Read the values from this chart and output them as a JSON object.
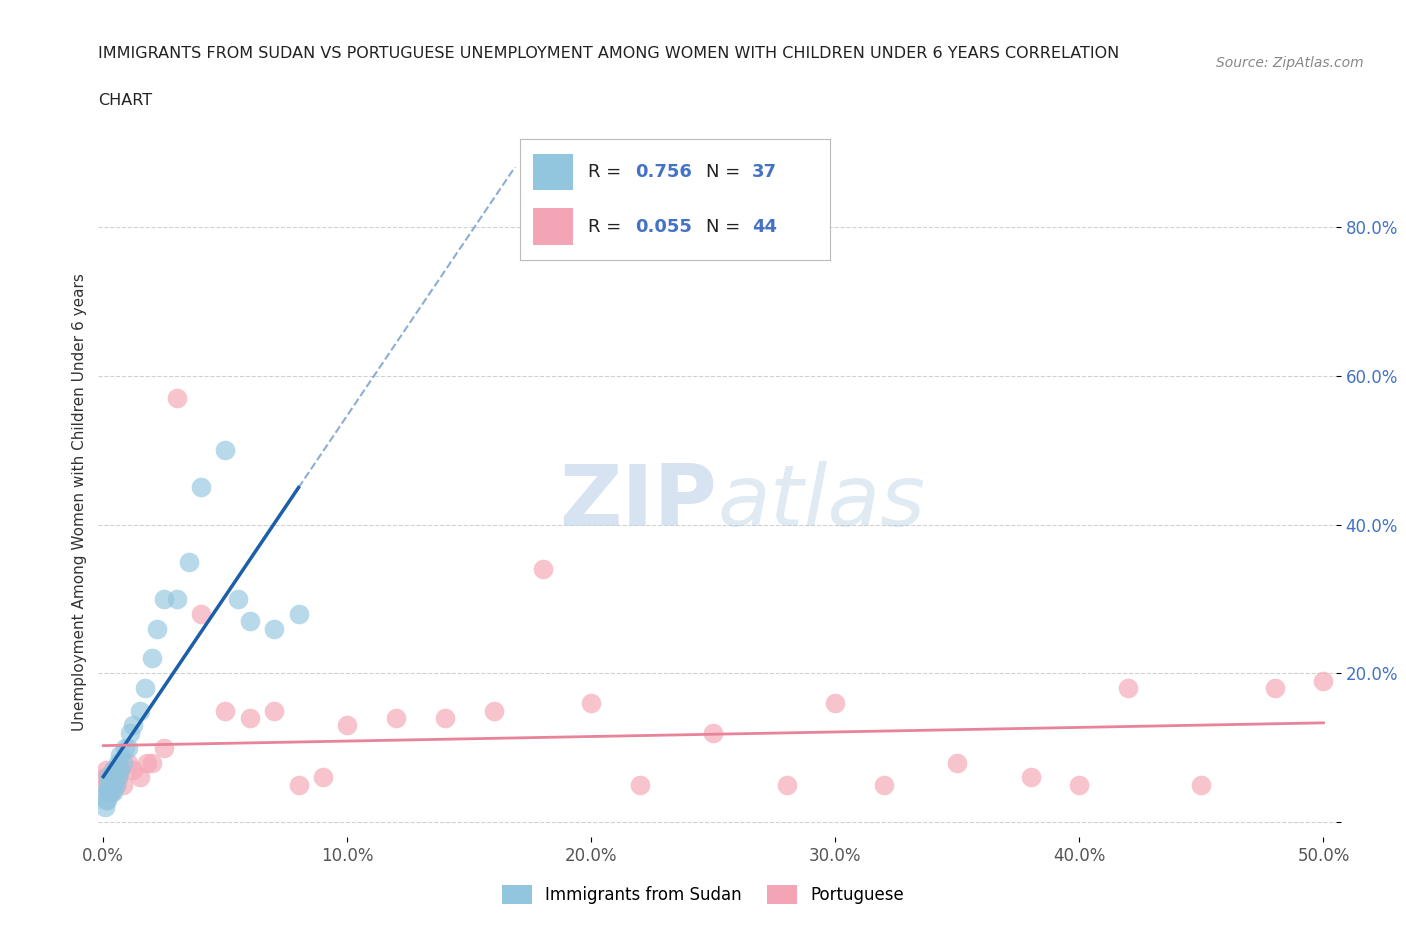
{
  "title_line1": "IMMIGRANTS FROM SUDAN VS PORTUGUESE UNEMPLOYMENT AMONG WOMEN WITH CHILDREN UNDER 6 YEARS CORRELATION",
  "title_line2": "CHART",
  "source_text": "Source: ZipAtlas.com",
  "ylabel": "Unemployment Among Women with Children Under 6 years",
  "xlim": [
    -0.002,
    0.505
  ],
  "ylim": [
    -0.02,
    0.88
  ],
  "xticks": [
    0.0,
    0.1,
    0.2,
    0.3,
    0.4,
    0.5
  ],
  "xticklabels": [
    "0.0%",
    "10.0%",
    "20.0%",
    "30.0%",
    "40.0%",
    "50.0%"
  ],
  "yticks": [
    0.0,
    0.2,
    0.4,
    0.6,
    0.8
  ],
  "yticklabels": [
    "",
    "20.0%",
    "40.0%",
    "60.0%",
    "80.0%"
  ],
  "background_color": "#ffffff",
  "watermark_zip": "ZIP",
  "watermark_atlas": "atlas",
  "R_sudan": 0.756,
  "N_sudan": 37,
  "R_portuguese": 0.055,
  "N_portuguese": 44,
  "color_sudan": "#92c5de",
  "color_portuguese": "#f4a5b5",
  "legend_sudan": "Immigrants from Sudan",
  "legend_portuguese": "Portuguese",
  "sudan_scatter_x": [
    0.0005,
    0.001,
    0.001,
    0.0015,
    0.002,
    0.002,
    0.002,
    0.003,
    0.003,
    0.003,
    0.004,
    0.004,
    0.004,
    0.005,
    0.005,
    0.006,
    0.006,
    0.007,
    0.007,
    0.008,
    0.009,
    0.01,
    0.011,
    0.012,
    0.015,
    0.017,
    0.02,
    0.022,
    0.025,
    0.03,
    0.035,
    0.04,
    0.05,
    0.055,
    0.06,
    0.07,
    0.08
  ],
  "sudan_scatter_y": [
    0.02,
    0.03,
    0.04,
    0.03,
    0.04,
    0.05,
    0.06,
    0.04,
    0.05,
    0.06,
    0.04,
    0.05,
    0.07,
    0.05,
    0.07,
    0.06,
    0.08,
    0.07,
    0.09,
    0.08,
    0.1,
    0.1,
    0.12,
    0.13,
    0.15,
    0.18,
    0.22,
    0.26,
    0.3,
    0.3,
    0.35,
    0.45,
    0.5,
    0.3,
    0.27,
    0.26,
    0.28
  ],
  "portuguese_scatter_x": [
    0.0005,
    0.001,
    0.001,
    0.002,
    0.002,
    0.003,
    0.003,
    0.004,
    0.004,
    0.005,
    0.006,
    0.007,
    0.008,
    0.01,
    0.012,
    0.015,
    0.018,
    0.02,
    0.025,
    0.03,
    0.04,
    0.05,
    0.06,
    0.07,
    0.08,
    0.09,
    0.1,
    0.12,
    0.14,
    0.16,
    0.18,
    0.2,
    0.22,
    0.25,
    0.28,
    0.3,
    0.32,
    0.35,
    0.38,
    0.4,
    0.42,
    0.45,
    0.48,
    0.5
  ],
  "portuguese_scatter_y": [
    0.06,
    0.05,
    0.07,
    0.04,
    0.06,
    0.05,
    0.04,
    0.06,
    0.07,
    0.05,
    0.06,
    0.07,
    0.05,
    0.08,
    0.07,
    0.06,
    0.08,
    0.08,
    0.1,
    0.57,
    0.28,
    0.15,
    0.14,
    0.15,
    0.05,
    0.06,
    0.13,
    0.14,
    0.14,
    0.15,
    0.34,
    0.16,
    0.05,
    0.12,
    0.05,
    0.16,
    0.05,
    0.08,
    0.06,
    0.05,
    0.18,
    0.05,
    0.18,
    0.19
  ],
  "trendline_color_sudan": "#1a5fa8",
  "trendline_color_portuguese": "#e8839a",
  "sudan_trend_x_start": 0.0,
  "sudan_trend_x_solid_end": 0.08,
  "sudan_trend_x_dashed_end": 0.23,
  "portuguese_trend_x_start": 0.0,
  "portuguese_trend_x_end": 0.5
}
